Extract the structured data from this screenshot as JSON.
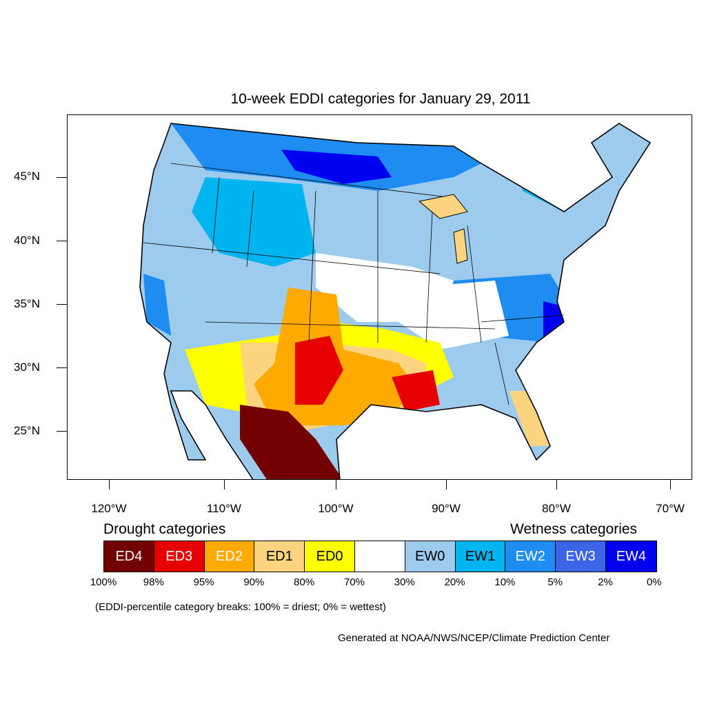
{
  "title": "10-week EDDI categories for January 29, 2011",
  "lat_labels": [
    "45°N",
    "40°N",
    "35°N",
    "30°N",
    "25°N"
  ],
  "lon_labels": [
    "120°W",
    "110°W",
    "100°W",
    "90°W",
    "80°W",
    "70°W"
  ],
  "legend": {
    "drought_heading": "Drought categories",
    "wetness_heading": "Wetness categories",
    "categories": [
      {
        "label": "ED4",
        "color": "#730000",
        "text_color": "#ffffff"
      },
      {
        "label": "ED3",
        "color": "#e60000",
        "text_color": "#ffffff"
      },
      {
        "label": "ED2",
        "color": "#ffaa00",
        "text_color": "#ffffff"
      },
      {
        "label": "ED1",
        "color": "#fcd37f",
        "text_color": "#000000"
      },
      {
        "label": "ED0",
        "color": "#ffff00",
        "text_color": "#000000"
      },
      {
        "label": "",
        "color": "#ffffff",
        "text_color": "#000000"
      },
      {
        "label": "EW0",
        "color": "#9ccbee",
        "text_color": "#000000"
      },
      {
        "label": "EW1",
        "color": "#00b4f0",
        "text_color": "#000000"
      },
      {
        "label": "EW2",
        "color": "#1e8cf0",
        "text_color": "#ffffff"
      },
      {
        "label": "EW3",
        "color": "#3c64e6",
        "text_color": "#ffffff"
      },
      {
        "label": "EW4",
        "color": "#0000f0",
        "text_color": "#ffffff"
      }
    ],
    "breaks": [
      "100%",
      "98%",
      "95%",
      "90%",
      "80%",
      "70%",
      "30%",
      "20%",
      "10%",
      "5%",
      "2%",
      "0%"
    ]
  },
  "note": "(EDDI-percentile category breaks: 100% = driest; 0% = wettest)",
  "credit": "Generated at NOAA/NWS/NCEP/Climate Prediction Center"
}
